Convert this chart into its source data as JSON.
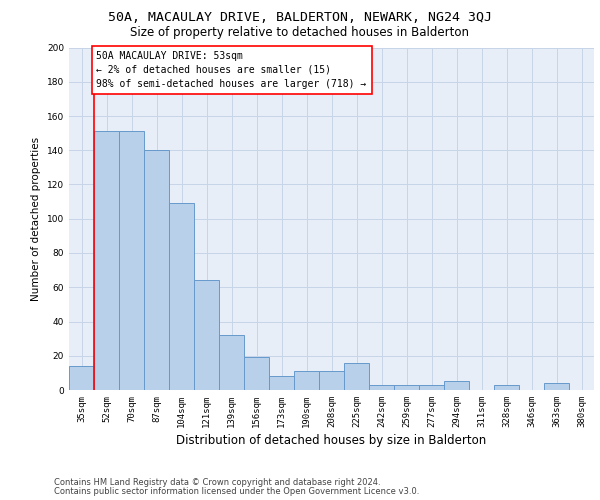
{
  "title1": "50A, MACAULAY DRIVE, BALDERTON, NEWARK, NG24 3QJ",
  "title2": "Size of property relative to detached houses in Balderton",
  "xlabel": "Distribution of detached houses by size in Balderton",
  "ylabel": "Number of detached properties",
  "categories": [
    "35sqm",
    "52sqm",
    "70sqm",
    "87sqm",
    "104sqm",
    "121sqm",
    "139sqm",
    "156sqm",
    "173sqm",
    "190sqm",
    "208sqm",
    "225sqm",
    "242sqm",
    "259sqm",
    "277sqm",
    "294sqm",
    "311sqm",
    "328sqm",
    "346sqm",
    "363sqm",
    "380sqm"
  ],
  "values": [
    14,
    151,
    151,
    140,
    109,
    64,
    32,
    19,
    8,
    11,
    11,
    16,
    3,
    3,
    3,
    5,
    0,
    3,
    0,
    4,
    0
  ],
  "bar_color": "#b8d0ea",
  "bar_edge_color": "#6699cc",
  "annotation_box_text": "50A MACAULAY DRIVE: 53sqm\n← 2% of detached houses are smaller (15)\n98% of semi-detached houses are larger (718) →",
  "ylim_max": 200,
  "yticks": [
    0,
    20,
    40,
    60,
    80,
    100,
    120,
    140,
    160,
    180,
    200
  ],
  "grid_color": "#c8d4e8",
  "footer1": "Contains HM Land Registry data © Crown copyright and database right 2024.",
  "footer2": "Contains public sector information licensed under the Open Government Licence v3.0.",
  "bg_color": "#e8eef8",
  "title1_fontsize": 9.5,
  "title2_fontsize": 8.5,
  "xlabel_fontsize": 8.5,
  "ylabel_fontsize": 7.5,
  "tick_fontsize": 6.5,
  "footer_fontsize": 6,
  "ann_fontsize": 7,
  "red_line_x": 0.5
}
